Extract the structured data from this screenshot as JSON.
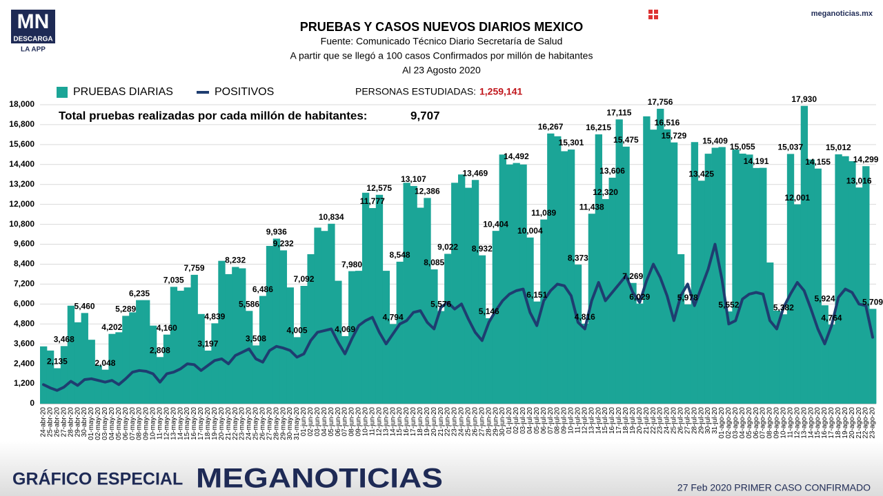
{
  "brand": {
    "logo": "MN",
    "download": "DESCARGA",
    "app": "LA APP",
    "site": "meganoticias.mx"
  },
  "footer": {
    "special": "GRÁFICO ESPECIAL",
    "brand": "MEGANOTICIAS",
    "note": "27 Feb 2020 PRIMER CASO CONFIRMADO"
  },
  "chart_data": {
    "type": "bar",
    "title": "PRUEBAS Y CASOS NUEVOS DIARIOS MEXICO",
    "subtitle": [
      "Fuente: Comunicado Técnico Diario Secretaría de Salud",
      "A partir que se llegó a 100 casos Confirmados por millón de habitantes",
      "Al 23 Agosto 2020"
    ],
    "annotations": {
      "studied_label": "PERSONAS ESTUDIADAS:",
      "studied_value": "1,259,141",
      "per_million_label": "Total pruebas realizadas por cada millón de habitantes:",
      "per_million_value": "9,707"
    },
    "grid": true,
    "ylim": [
      0,
      18000
    ],
    "yticks": [
      0,
      {
        "value": 1200,
        "label": "1,200"
      },
      {
        "value": 2400,
        "label": "2,400"
      },
      {
        "value": 3600,
        "label": "3,600"
      },
      {
        "value": 4800,
        "label": "4,800"
      },
      {
        "value": 6000,
        "label": "6,000"
      },
      {
        "value": 7200,
        "label": "7,200"
      },
      {
        "value": 8400,
        "label": "8,400"
      },
      {
        "value": 9600,
        "label": "9,600"
      },
      {
        "value": 10800,
        "label": "10,800"
      },
      {
        "value": 12000,
        "label": "12,000"
      },
      {
        "value": 13200,
        "label": "13,200"
      },
      {
        "value": 14400,
        "label": "14,400"
      },
      {
        "value": 15600,
        "label": "15,600"
      },
      {
        "value": 16800,
        "label": "16,800"
      },
      {
        "value": 18000,
        "label": "18,000"
      }
    ],
    "categories": [
      "24-abr-20",
      "25-abr-20",
      "26-abr-20",
      "27-abr-20",
      "28-abr-20",
      "29-abr-20",
      "30-abr-20",
      "01-may-20",
      "02-may-20",
      "03-may-20",
      "04-may-20",
      "05-may-20",
      "06-may-20",
      "07-may-20",
      "08-may-20",
      "09-may-20",
      "10-may-20",
      "11-may-20",
      "12-may-20",
      "13-may-20",
      "14-may-20",
      "15-may-20",
      "16-may-20",
      "17-may-20",
      "18-may-20",
      "19-may-20",
      "20-may-20",
      "21-may-20",
      "22-may-20",
      "23-may-20",
      "24-may-20",
      "25-may-20",
      "26-may-20",
      "27-may-20",
      "28-may-20",
      "29-may-20",
      "30-may-20",
      "31-may-20",
      "01-jun-20",
      "02-jun-20",
      "03-jun-20",
      "04-jun-20",
      "05-jun-20",
      "06-jun-20",
      "07-jun-20",
      "08-jun-20",
      "09-jun-20",
      "10-jun-20",
      "11-jun-20",
      "12-jun-20",
      "13-jun-20",
      "14-jun-20",
      "15-jun-20",
      "16-jun-20",
      "17-jun-20",
      "18-jun-20",
      "19-jun-20",
      "20-jun-20",
      "21-jun-20",
      "22-jun-20",
      "23-jun-20",
      "24-jun-20",
      "25-jun-20",
      "26-jun-20",
      "27-jun-20",
      "28-jun-20",
      "29-jun-20",
      "30-jun-20",
      "01-jul-20",
      "02-jul-20",
      "03-jul-20",
      "04-jul-20",
      "05-jul-20",
      "06-jul-20",
      "07-jul-20",
      "08-jul-20",
      "09-jul-20",
      "10-jul-20",
      "11-jul-20",
      "12-jul-20",
      "13-jul-20",
      "14-jul-20",
      "15-jul-20",
      "16-jul-20",
      "17-jul-20",
      "18-jul-20",
      "19-jul-20",
      "20-jul-20",
      "21-jul-20",
      "22-jul-20",
      "23-jul-20",
      "24-jul-20",
      "25-jul-20",
      "26-jul-20",
      "27-jul-20",
      "28-jul-20",
      "29-jul-20",
      "30-jul-20",
      "31-jul-20",
      "01-ago-20",
      "02-ago-20",
      "03-ago-20",
      "04-ago-20",
      "05-ago-20",
      "06-ago-20",
      "07-ago-20",
      "08-ago-20",
      "09-ago-20",
      "10-ago-20",
      "11-ago-20",
      "12-ago-20",
      "13-ago-20",
      "14-ago-20",
      "15-ago-20",
      "16-ago-20",
      "17-ago-20",
      "18-ago-20",
      "19-ago-20",
      "20-ago-20",
      "21-ago-20",
      "22-ago-20",
      "23-ago-20"
    ],
    "series": [
      {
        "name": "PRUEBAS DIARIAS",
        "color": "#1ba597",
        "type": "bar",
        "values": [
          3450,
          3200,
          2135,
          3468,
          5900,
          4900,
          5460,
          3850,
          2300,
          2048,
          4202,
          4300,
          5289,
          5500,
          6235,
          6235,
          4700,
          2808,
          4160,
          7035,
          6800,
          7000,
          7759,
          5400,
          3197,
          4839,
          8600,
          7800,
          8232,
          8150,
          5586,
          3508,
          6486,
          9500,
          9936,
          9232,
          7000,
          4005,
          7092,
          9000,
          10600,
          10400,
          10834,
          7400,
          4069,
          7980,
          8000,
          12700,
          11777,
          12575,
          8000,
          4794,
          8548,
          13300,
          13107,
          11800,
          12386,
          8085,
          5576,
          9022,
          13300,
          13800,
          13000,
          13469,
          8932,
          5146,
          10404,
          15000,
          14400,
          14492,
          14400,
          10004,
          6151,
          11089,
          16267,
          16100,
          15200,
          15301,
          8373,
          4816,
          11438,
          16215,
          12320,
          13606,
          17115,
          15475,
          7269,
          6029,
          17300,
          16500,
          17756,
          16516,
          15729,
          9000,
          5978,
          15750,
          13425,
          15050,
          15409,
          15450,
          5552,
          15300,
          15055,
          15000,
          14191,
          14200,
          8500,
          5600,
          5382,
          15037,
          12001,
          17930,
          14700,
          14155,
          5924,
          4764,
          15012,
          14900,
          14600,
          13016,
          14299,
          5709
        ],
        "value_labels": [
          null,
          null,
          "2,135",
          "3,468",
          null,
          null,
          "5,460",
          null,
          null,
          "2,048",
          "4,202",
          null,
          "5,289",
          null,
          "6,235",
          null,
          null,
          "2,808",
          "4,160",
          "7,035",
          null,
          null,
          "7,759",
          null,
          "3,197",
          "4,839",
          null,
          null,
          "8,232",
          null,
          "5,586",
          "3,508",
          "6,486",
          null,
          "9,936",
          "9,232",
          null,
          "4,005",
          "7,092",
          null,
          null,
          null,
          "10,834",
          null,
          "4,069",
          "7,980",
          null,
          null,
          "11,777",
          "12,575",
          null,
          "4,794",
          "8,548",
          null,
          "13,107",
          null,
          "12,386",
          "8,085",
          "5,576",
          "9,022",
          null,
          null,
          null,
          "13,469",
          "8,932",
          "5,146",
          "10,404",
          null,
          null,
          "14,492",
          null,
          "10,004",
          "6,151",
          "11,089",
          "16,267",
          null,
          null,
          "15,301",
          "8,373",
          "4,816",
          "11,438",
          "16,215",
          "12,320",
          "13,606",
          "17,115",
          "15,475",
          "7,269",
          "6,029",
          null,
          null,
          "17,756",
          "16,516",
          "15,729",
          null,
          "5,978",
          null,
          "13,425",
          null,
          "15,409",
          null,
          "5,552",
          null,
          "15,055",
          null,
          "14,191",
          null,
          null,
          null,
          "5,382",
          "15,037",
          "12,001",
          "17,930",
          null,
          "14,155",
          "5,924",
          "4,764",
          "15,012",
          null,
          null,
          "13,016",
          "14,299",
          "5,709"
        ]
      },
      {
        "name": "POSITIVOS",
        "color": "#1e3d70",
        "type": "line",
        "values": [
          1150,
          950,
          800,
          1000,
          1350,
          1100,
          1450,
          1500,
          1400,
          1300,
          1400,
          1150,
          1500,
          1900,
          2000,
          1950,
          1800,
          1300,
          1800,
          1900,
          2100,
          2400,
          2350,
          2000,
          2300,
          2600,
          2700,
          2400,
          2900,
          3100,
          3300,
          2700,
          2500,
          3200,
          3450,
          3350,
          3200,
          2800,
          3000,
          3800,
          4300,
          4400,
          4500,
          3700,
          3000,
          3900,
          4700,
          5000,
          5200,
          4300,
          3600,
          4200,
          4800,
          5000,
          5500,
          5600,
          4900,
          4500,
          5800,
          6100,
          5700,
          6000,
          5100,
          4300,
          3800,
          4900,
          5600,
          6200,
          6600,
          6800,
          6900,
          5500,
          4700,
          6200,
          6800,
          7200,
          7100,
          6500,
          4900,
          4500,
          6200,
          7300,
          6200,
          6700,
          7200,
          7700,
          6700,
          6100,
          7400,
          8400,
          7600,
          6500,
          5000,
          6500,
          7200,
          5900,
          7000,
          8100,
          9600,
          7500,
          4800,
          5000,
          6300,
          6600,
          6700,
          6600,
          5000,
          4500,
          5800,
          6600,
          7300,
          6800,
          5700,
          4500,
          3600,
          4700,
          6400,
          6900,
          6700,
          6000,
          5900,
          4000
        ]
      }
    ]
  }
}
